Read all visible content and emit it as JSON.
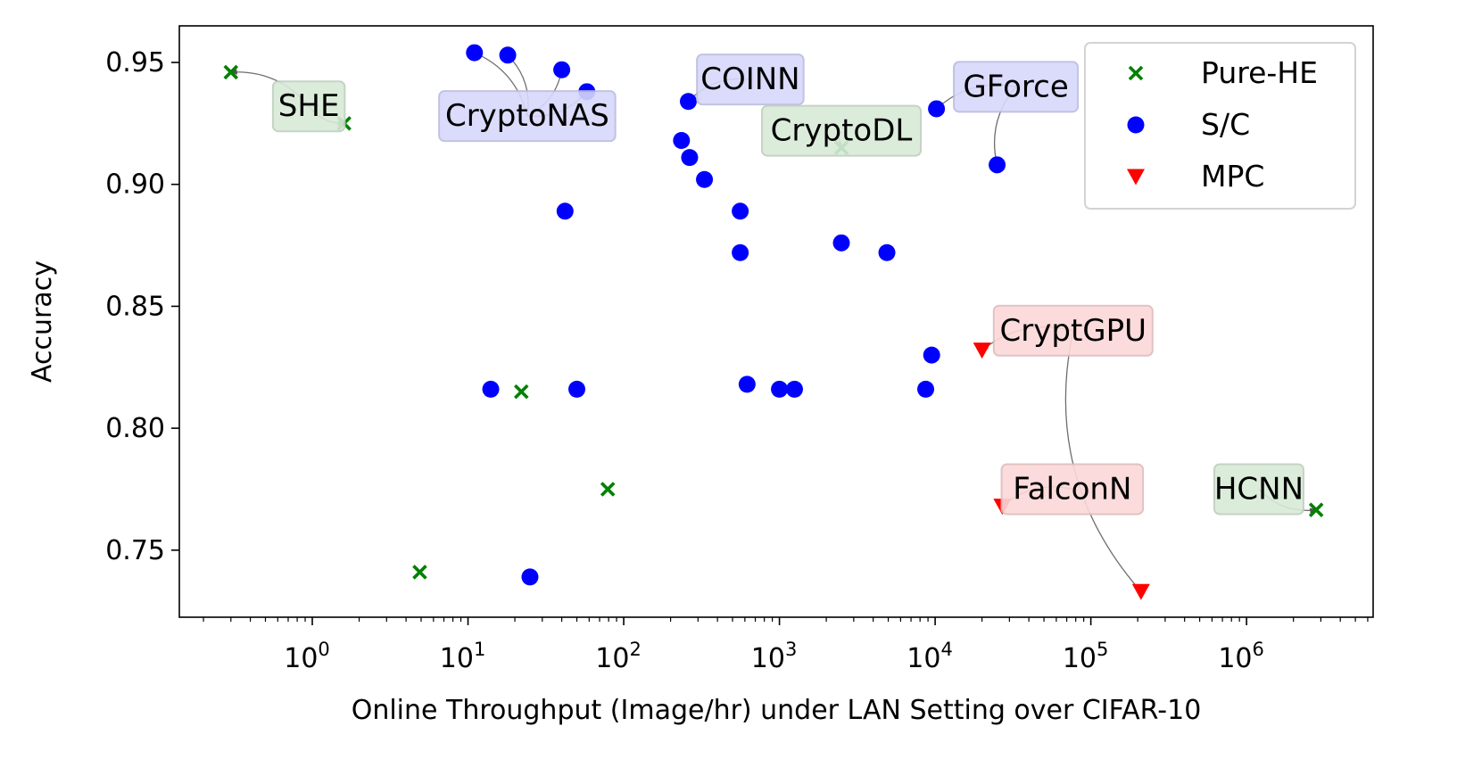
{
  "chart_data": {
    "type": "scatter",
    "title": "",
    "xlabel": "Online Throughput (Image/hr) under LAN Setting over CIFAR-10",
    "ylabel": "Accuracy",
    "xscale": "log",
    "xlim": [
      0.14,
      6500000
    ],
    "ylim": [
      0.7225,
      0.965
    ],
    "grid": false,
    "legend_position": "top-right",
    "x_tick_labels": [
      {
        "base": "10",
        "exp": "0"
      },
      {
        "base": "10",
        "exp": "1"
      },
      {
        "base": "10",
        "exp": "2"
      },
      {
        "base": "10",
        "exp": "3"
      },
      {
        "base": "10",
        "exp": "4"
      },
      {
        "base": "10",
        "exp": "5"
      },
      {
        "base": "10",
        "exp": "6"
      }
    ],
    "y_tick_labels": [
      "0.75",
      "0.80",
      "0.85",
      "0.90",
      "0.95"
    ],
    "series": [
      {
        "name": "Pure-HE",
        "marker": "x",
        "color": "#008000",
        "points": [
          {
            "x": 0.3,
            "y": 0.946
          },
          {
            "x": 1.6,
            "y": 0.925
          },
          {
            "x": 4.9,
            "y": 0.741
          },
          {
            "x": 22,
            "y": 0.815
          },
          {
            "x": 79,
            "y": 0.775
          },
          {
            "x": 2500,
            "y": 0.915
          },
          {
            "x": 2800000,
            "y": 0.7665
          }
        ]
      },
      {
        "name": "S/C",
        "marker": "circle",
        "color": "#0000ff",
        "points": [
          {
            "x": 11,
            "y": 0.954
          },
          {
            "x": 18,
            "y": 0.953
          },
          {
            "x": 40,
            "y": 0.947
          },
          {
            "x": 58,
            "y": 0.938
          },
          {
            "x": 14,
            "y": 0.816
          },
          {
            "x": 50,
            "y": 0.816
          },
          {
            "x": 25,
            "y": 0.739
          },
          {
            "x": 42,
            "y": 0.889
          },
          {
            "x": 260,
            "y": 0.934
          },
          {
            "x": 235,
            "y": 0.918
          },
          {
            "x": 265,
            "y": 0.911
          },
          {
            "x": 330,
            "y": 0.902
          },
          {
            "x": 560,
            "y": 0.889
          },
          {
            "x": 560,
            "y": 0.872
          },
          {
            "x": 620,
            "y": 0.818
          },
          {
            "x": 1000,
            "y": 0.816
          },
          {
            "x": 1250,
            "y": 0.816
          },
          {
            "x": 2500,
            "y": 0.876
          },
          {
            "x": 4900,
            "y": 0.872
          },
          {
            "x": 8700,
            "y": 0.816
          },
          {
            "x": 9500,
            "y": 0.83
          },
          {
            "x": 10200,
            "y": 0.931
          },
          {
            "x": 25000,
            "y": 0.908
          }
        ]
      },
      {
        "name": "MPC",
        "marker": "triangle-down",
        "color": "#ff0000",
        "points": [
          {
            "x": 20000,
            "y": 0.832
          },
          {
            "x": 27000,
            "y": 0.768
          },
          {
            "x": 210000,
            "y": 0.733
          }
        ]
      }
    ],
    "annotations": [
      {
        "text": "SHE",
        "category": "Pure-HE",
        "label_x": 0.95,
        "label_y": 0.932,
        "targets": [
          {
            "x": 0.3,
            "y": 0.946
          },
          {
            "x": 1.6,
            "y": 0.925
          }
        ]
      },
      {
        "text": "CryptoNAS",
        "category": "S/C",
        "label_x": 24,
        "label_y": 0.928,
        "targets": [
          {
            "x": 11,
            "y": 0.954
          },
          {
            "x": 18,
            "y": 0.953
          },
          {
            "x": 40,
            "y": 0.947
          },
          {
            "x": 58,
            "y": 0.938
          }
        ]
      },
      {
        "text": "COINN",
        "category": "S/C",
        "label_x": 650,
        "label_y": 0.943,
        "targets": [
          {
            "x": 260,
            "y": 0.934
          }
        ]
      },
      {
        "text": "CryptoDL",
        "category": "Pure-HE",
        "label_x": 2500,
        "label_y": 0.922,
        "targets": [
          {
            "x": 2500,
            "y": 0.915
          }
        ]
      },
      {
        "text": "GForce",
        "category": "S/C",
        "label_x": 33000,
        "label_y": 0.94,
        "targets": [
          {
            "x": 10200,
            "y": 0.931
          },
          {
            "x": 25000,
            "y": 0.908
          }
        ]
      },
      {
        "text": "CryptGPU",
        "category": "MPC",
        "label_x": 77000,
        "label_y": 0.84,
        "targets": [
          {
            "x": 20000,
            "y": 0.832
          },
          {
            "x": 210000,
            "y": 0.733
          }
        ]
      },
      {
        "text": "FalconN",
        "category": "MPC",
        "label_x": 76000,
        "label_y": 0.775,
        "targets": [
          {
            "x": 27000,
            "y": 0.768
          }
        ]
      },
      {
        "text": "HCNN",
        "category": "Pure-HE",
        "label_x": 1200000,
        "label_y": 0.775,
        "targets": [
          {
            "x": 2800000,
            "y": 0.7665
          }
        ]
      }
    ],
    "category_box_colors": {
      "Pure-HE": {
        "fill": "#d8ead8",
        "stroke": "#bfcfbf"
      },
      "S/C": {
        "fill": "#d8d8fb",
        "stroke": "#bcbcdf"
      },
      "MPC": {
        "fill": "#fbd8d8",
        "stroke": "#dfbcbc"
      }
    }
  }
}
